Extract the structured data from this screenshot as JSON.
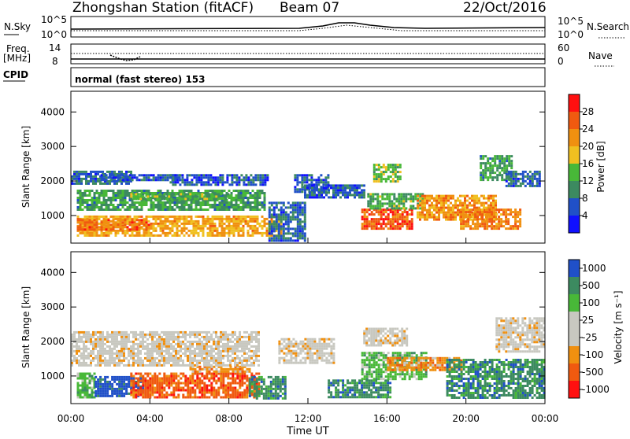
{
  "header": {
    "station": "Zhongshan Station (fitACF)",
    "beam": "Beam 07",
    "date": "22/Oct/2016"
  },
  "panels": {
    "nsky": {
      "label": "N.Sky",
      "tick_top": "10^5",
      "tick_bottom": "10^0",
      "right_tick_top": "10^5",
      "right_tick_bottom": "10^0",
      "right_label": "N.Search"
    },
    "freq": {
      "label_line1": "Freq.",
      "label_line2": "[MHz]",
      "tick_top": "14",
      "tick_bottom": "8",
      "right_tick_top": "60",
      "right_tick_bottom": "0",
      "right_label": "Nave"
    },
    "cpid": {
      "label": "CPID",
      "text": "normal (fast stereo) 153"
    }
  },
  "colors": {
    "power_scale": [
      "#1010ff",
      "#2050c8",
      "#3c8a60",
      "#48b838",
      "#f0c020",
      "#f09010",
      "#f05a10",
      "#ff1010"
    ],
    "velocity_scale": [
      "#ff1010",
      "#f05a10",
      "#f09010",
      "#c8c8c0",
      "#c8c8c0",
      "#48b838",
      "#3c8a60",
      "#2050c8"
    ]
  },
  "chart_data": [
    {
      "type": "heatmap",
      "name": "power",
      "ylabel": "Slant Range [km]",
      "yticks": [
        "1000",
        "2000",
        "3000",
        "4000"
      ],
      "ylim": [
        200,
        4600
      ],
      "xlim_hours": [
        0,
        24
      ],
      "colorbar": {
        "label": "Power [dB]",
        "ticks": [
          "4",
          "8",
          "12",
          "16",
          "20",
          "24",
          "28"
        ],
        "range": [
          0,
          32
        ]
      },
      "blobs": [
        {
          "t0": 0.3,
          "t1": 10.7,
          "r0": 400,
          "r1": 1000,
          "v": 20
        },
        {
          "t0": 0.3,
          "t1": 4.0,
          "r0": 600,
          "r1": 900,
          "v": 24
        },
        {
          "t0": 0.3,
          "t1": 9.8,
          "r0": 1200,
          "r1": 1750,
          "v": 11
        },
        {
          "t0": 3.0,
          "t1": 8.0,
          "r0": 1500,
          "r1": 1650,
          "v": 13
        },
        {
          "t0": 0.0,
          "t1": 3.0,
          "r0": 1900,
          "r1": 2300,
          "v": 7
        },
        {
          "t0": 1.5,
          "t1": 5.5,
          "r0": 2000,
          "r1": 2200,
          "v": 6
        },
        {
          "t0": 5.0,
          "t1": 10.0,
          "r0": 1900,
          "r1": 2200,
          "v": 6
        },
        {
          "t0": 10.0,
          "t1": 11.8,
          "r0": 300,
          "r1": 1400,
          "v": 7
        },
        {
          "t0": 11.3,
          "t1": 13.0,
          "r0": 1700,
          "r1": 2200,
          "v": 6
        },
        {
          "t0": 14.7,
          "t1": 17.3,
          "r0": 600,
          "r1": 1200,
          "v": 26
        },
        {
          "t0": 15.0,
          "t1": 17.8,
          "r0": 1200,
          "r1": 1650,
          "v": 12
        },
        {
          "t0": 15.3,
          "t1": 16.7,
          "r0": 2000,
          "r1": 2500,
          "v": 14
        },
        {
          "t0": 17.5,
          "t1": 21.5,
          "r0": 900,
          "r1": 1600,
          "v": 21
        },
        {
          "t0": 19.7,
          "t1": 22.8,
          "r0": 650,
          "r1": 1200,
          "v": 23
        },
        {
          "t0": 20.7,
          "t1": 22.3,
          "r0": 2050,
          "r1": 2750,
          "v": 11
        },
        {
          "t0": 22.0,
          "t1": 23.7,
          "r0": 1850,
          "r1": 2300,
          "v": 7
        },
        {
          "t0": 11.8,
          "t1": 14.8,
          "r0": 1500,
          "r1": 1900,
          "v": 6
        }
      ]
    },
    {
      "type": "heatmap",
      "name": "velocity",
      "ylabel": "Slant Range [km]",
      "yticks": [
        "1000",
        "2000",
        "3000",
        "4000"
      ],
      "ylim": [
        200,
        4600
      ],
      "xlim_hours": [
        0,
        24
      ],
      "xticks": [
        "00:00",
        "04:00",
        "08:00",
        "12:00",
        "16:00",
        "20:00",
        "00:00"
      ],
      "xlabel": "Time UT",
      "colorbar": {
        "label": "Velocity [m s⁻¹]",
        "ticks": [
          "1000",
          "500",
          "100",
          "25",
          "-25",
          "-100",
          "-500",
          "-1000"
        ]
      },
      "blobs": [
        {
          "t0": 0.3,
          "t1": 1.2,
          "r0": 400,
          "r1": 1100,
          "v": 5
        },
        {
          "t0": 1.2,
          "t1": 3.6,
          "r0": 400,
          "r1": 1000,
          "v": 7
        },
        {
          "t0": 3.0,
          "t1": 9.5,
          "r0": 400,
          "r1": 1100,
          "v": 1
        },
        {
          "t0": 6.0,
          "t1": 9.0,
          "r0": 1100,
          "r1": 1300,
          "v": 2
        },
        {
          "t0": 9.0,
          "t1": 10.8,
          "r0": 350,
          "r1": 1000,
          "v": 6
        },
        {
          "t0": 0.0,
          "t1": 9.5,
          "r0": 1300,
          "r1": 2300,
          "v": 3
        },
        {
          "t0": 10.5,
          "t1": 13.3,
          "r0": 1400,
          "r1": 2100,
          "v": 3
        },
        {
          "t0": 14.8,
          "t1": 17.0,
          "r0": 1900,
          "r1": 2400,
          "v": 3
        },
        {
          "t0": 13.0,
          "t1": 16.2,
          "r0": 400,
          "r1": 900,
          "v": 6
        },
        {
          "t0": 14.7,
          "t1": 18.0,
          "r0": 900,
          "r1": 1700,
          "v": 5
        },
        {
          "t0": 16.0,
          "t1": 19.8,
          "r0": 1150,
          "r1": 1550,
          "v": 2
        },
        {
          "t0": 19.0,
          "t1": 24.0,
          "r0": 400,
          "r1": 1500,
          "v": 6
        },
        {
          "t0": 21.5,
          "t1": 24.0,
          "r0": 1700,
          "r1": 2700,
          "v": 3
        }
      ]
    }
  ]
}
